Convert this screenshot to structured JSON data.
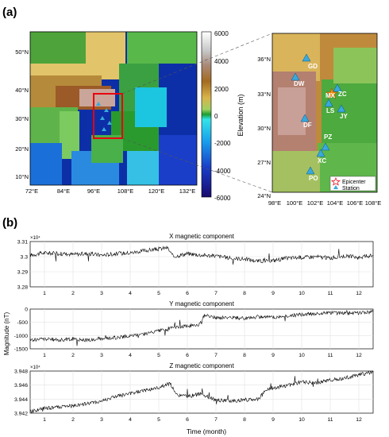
{
  "panel_a_label": "(a)",
  "panel_b_label": "(b)",
  "map_main": {
    "lat_ticks": [
      "50°N",
      "40°N",
      "30°N",
      "20°N",
      "10°N"
    ],
    "lon_ticks": [
      "72°E",
      "84°E",
      "96°E",
      "108°E",
      "120°E",
      "132°E"
    ]
  },
  "colorbar": {
    "label": "Elevation (m)",
    "ticks": [
      "6000",
      "4000",
      "2000",
      "0",
      "-2000",
      "-4000",
      "-6000"
    ]
  },
  "map_inset": {
    "lat_ticks": [
      "36°N",
      "33°N",
      "30°N",
      "27°N",
      "24°N"
    ],
    "lon_ticks": [
      "98°E",
      "100°E",
      "102°E",
      "104°E",
      "106°E",
      "108°E"
    ],
    "stations": [
      "GD",
      "DW",
      "ZC",
      "MX",
      "JY",
      "DF",
      "LS",
      "PZ",
      "XC",
      "PO"
    ],
    "legend": {
      "epicenter": "Epicenter",
      "station": "Station"
    }
  },
  "colors": {
    "signal": "#000000",
    "grid": "#e2e2e2",
    "epicenter": "#f28c0f",
    "station": "#39a9dd",
    "box": "#e8000f"
  },
  "chart_data": [
    {
      "type": "line",
      "title": "X magnetic component",
      "exponent": "×10⁴",
      "xticks": [
        "1",
        "2",
        "3",
        "4",
        "5",
        "6",
        "7",
        "8",
        "9",
        "10",
        "11",
        "12"
      ],
      "yticks": [
        "3.31",
        "3.3",
        "3.29",
        "3.28"
      ],
      "ylim": [
        32800,
        33100
      ],
      "x": [
        0.5,
        1,
        1.5,
        2,
        2.5,
        3,
        3.5,
        4,
        4.5,
        5,
        5.3,
        5.5,
        6,
        6.5,
        7,
        7.5,
        8,
        8.5,
        9,
        9.5,
        10,
        10.5,
        11,
        11.5,
        12,
        12.5
      ],
      "y": [
        33010,
        33025,
        33020,
        33015,
        33020,
        33010,
        33020,
        33025,
        33040,
        33050,
        33060,
        33000,
        33020,
        33010,
        33005,
        32990,
        32985,
        32970,
        32975,
        32990,
        32995,
        33000,
        32990,
        33005,
        32995,
        33010
      ]
    },
    {
      "type": "line",
      "title": "Y magnetic component",
      "ylabel": "Magnitude (nT)",
      "xticks": [
        "1",
        "2",
        "3",
        "4",
        "5",
        "6",
        "7",
        "8",
        "9",
        "10",
        "11",
        "12"
      ],
      "yticks": [
        "0",
        "-500",
        "-1000",
        "-1500"
      ],
      "ylim": [
        -1500,
        100
      ],
      "x": [
        0.5,
        1,
        1.5,
        2,
        2.5,
        3,
        3.5,
        4,
        4.5,
        5,
        5.5,
        6,
        6.4,
        6.6,
        7,
        7.5,
        8,
        8.5,
        9,
        9.5,
        10,
        10.5,
        11,
        11.5,
        12,
        12.5
      ],
      "y": [
        -1150,
        -1100,
        -1150,
        -1100,
        -1150,
        -1080,
        -1050,
        -980,
        -900,
        -780,
        -650,
        -580,
        -520,
        -150,
        -250,
        -230,
        -280,
        -200,
        -230,
        -180,
        -120,
        -80,
        -40,
        -80,
        -50,
        -20
      ]
    },
    {
      "type": "line",
      "title": "Z magnetic component",
      "exponent": "×10⁴",
      "xlabel": "Time (month)",
      "xticks": [
        "1",
        "2",
        "3",
        "4",
        "5",
        "6",
        "7",
        "8",
        "9",
        "10",
        "11",
        "12"
      ],
      "yticks": [
        "3.948",
        "3.946",
        "3.944",
        "3.942"
      ],
      "ylim": [
        39420,
        39490
      ],
      "x": [
        0.5,
        1,
        1.5,
        2,
        2.5,
        3,
        3.5,
        4,
        4.5,
        5,
        5.4,
        5.6,
        6,
        6.5,
        7,
        7.5,
        8,
        8.5,
        8.8,
        9,
        9.5,
        10,
        10.5,
        11,
        11.5,
        12,
        12.5
      ],
      "y": [
        39423,
        39428,
        39430,
        39432,
        39436,
        39440,
        39448,
        39452,
        39458,
        39462,
        39470,
        39450,
        39448,
        39452,
        39442,
        39440,
        39442,
        39444,
        39460,
        39462,
        39466,
        39472,
        39470,
        39475,
        39478,
        39484,
        39488
      ]
    }
  ]
}
